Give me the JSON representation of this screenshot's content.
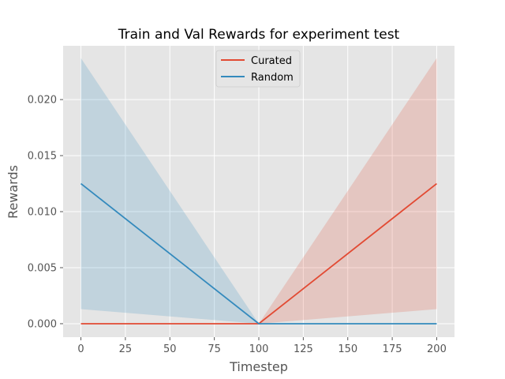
{
  "chart_data": {
    "type": "line",
    "title": "Train and Val Rewards for experiment test",
    "xlabel": "Timestep",
    "ylabel": "Rewards",
    "xlim": [
      -10,
      210
    ],
    "ylim": [
      -0.0012,
      0.0248
    ],
    "xticks": [
      0,
      25,
      50,
      75,
      100,
      125,
      150,
      175,
      200
    ],
    "xtick_labels": [
      "0",
      "25",
      "50",
      "75",
      "100",
      "125",
      "150",
      "175",
      "200"
    ],
    "yticks": [
      0,
      0.005,
      0.01,
      0.015,
      0.02
    ],
    "ytick_labels": [
      "0.000",
      "0.005",
      "0.010",
      "0.015",
      "0.020"
    ],
    "grid": true,
    "legend_position": "top-center",
    "x": [
      0,
      100,
      200
    ],
    "series": [
      {
        "name": "Curated",
        "color": "#E24A33",
        "band_color": "#E24A33",
        "values": [
          0.0,
          0.0,
          0.0125
        ],
        "lower": [
          0.0,
          0.0,
          0.0013
        ],
        "upper": [
          0.0,
          0.0,
          0.0237
        ]
      },
      {
        "name": "Random",
        "color": "#348ABD",
        "band_color": "#348ABD",
        "values": [
          0.0125,
          0.0,
          0.0
        ],
        "lower": [
          0.0013,
          0.0,
          0.0
        ],
        "upper": [
          0.0237,
          0.0,
          0.0
        ]
      }
    ],
    "plot_background": "#E5E5E5",
    "grid_color": "#FFFFFF"
  }
}
